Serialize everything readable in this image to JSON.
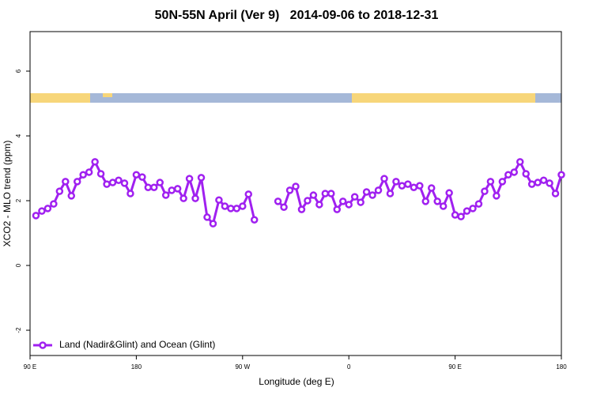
{
  "chart_data": {
    "type": "line",
    "title": "50N-55N April (Ver 9)   2014-09-06 to 2018-12-31",
    "xlabel": "Longitude (deg E)",
    "ylabel": "XCO2 - MLO trend (ppm)",
    "x": [
      95,
      100,
      105,
      110,
      115,
      120,
      125,
      130,
      135,
      140,
      145,
      150,
      155,
      160,
      165,
      170,
      175,
      180,
      185,
      190,
      195,
      200,
      205,
      210,
      215,
      220,
      225,
      230,
      235,
      240,
      245,
      250,
      255,
      260,
      265,
      270,
      275,
      280,
      285,
      290,
      295,
      300,
      305,
      310,
      315,
      320,
      325,
      330,
      335,
      340,
      345,
      350,
      355,
      360,
      365,
      370,
      375,
      380,
      385,
      390,
      395,
      400,
      405,
      410,
      415,
      420,
      425,
      430,
      435,
      440,
      445,
      450,
      455,
      460,
      465,
      470,
      475,
      480,
      485,
      490,
      495,
      500,
      505,
      510,
      515,
      520,
      525,
      530,
      535,
      540
    ],
    "series": [
      {
        "name": "Land (Nadir&Glint) and Ocean (Glint)",
        "color": "#a020f0",
        "values": [
          1.54,
          1.68,
          1.76,
          1.9,
          2.29,
          2.59,
          2.15,
          2.59,
          2.8,
          2.88,
          3.2,
          2.83,
          2.51,
          2.56,
          2.63,
          2.54,
          2.22,
          2.8,
          2.73,
          2.41,
          2.41,
          2.56,
          2.17,
          2.32,
          2.37,
          2.07,
          2.68,
          2.07,
          2.71,
          1.49,
          1.29,
          2.02,
          1.83,
          1.76,
          1.76,
          1.83,
          2.2,
          1.41,
          null,
          null,
          null,
          1.98,
          1.8,
          2.32,
          2.44,
          1.73,
          2.0,
          2.17,
          1.88,
          2.22,
          2.22,
          1.73,
          1.98,
          1.88,
          2.12,
          1.95,
          2.27,
          2.17,
          2.32,
          2.68,
          2.22,
          2.59,
          2.46,
          2.51,
          2.41,
          2.46,
          1.98,
          2.39,
          1.98,
          1.83,
          2.24,
          1.56,
          1.51,
          1.68,
          1.76,
          1.9,
          2.29,
          2.59,
          2.15,
          2.59,
          2.8,
          2.88,
          3.2,
          2.83,
          2.51,
          2.56,
          2.63,
          2.54,
          2.22,
          2.8
        ]
      }
    ],
    "xlim": [
      90,
      540
    ],
    "xticks": [
      {
        "value": 90,
        "label": "90 E"
      },
      {
        "value": 180,
        "label": "180"
      },
      {
        "value": 270,
        "label": "90 W"
      },
      {
        "value": 360,
        "label": "0"
      },
      {
        "value": 450,
        "label": "90 E"
      },
      {
        "value": 540,
        "label": "180"
      }
    ],
    "ylim": [
      -2.78,
      7.22
    ],
    "yticks": [
      -2,
      0,
      2,
      4,
      6
    ],
    "legend": "bottom-left"
  }
}
